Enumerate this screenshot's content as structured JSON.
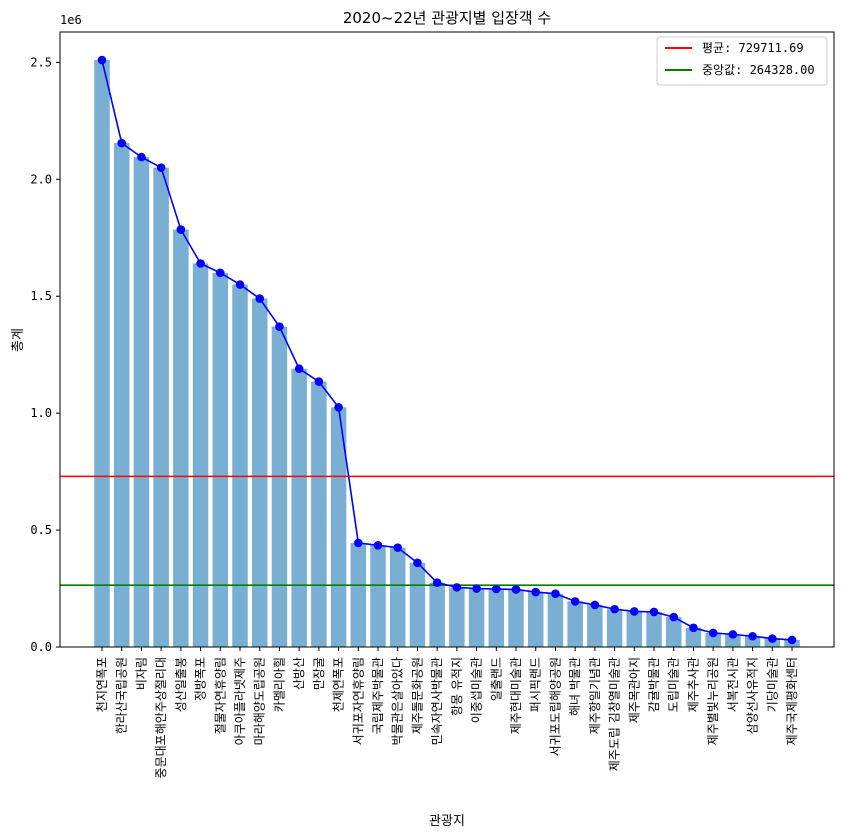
{
  "chart_data": {
    "type": "bar",
    "title": "2020~22년 관광지별 입장객 수",
    "xlabel": "관광지",
    "ylabel": "총계",
    "y_offset_label": "1e6",
    "ylim": [
      0,
      2630000
    ],
    "yticks": [
      0,
      500000,
      1000000,
      1500000,
      2000000,
      2500000
    ],
    "ytick_labels": [
      "0.0",
      "0.5",
      "1.0",
      "1.5",
      "2.0",
      "2.5"
    ],
    "grid": false,
    "legend_position": "top-right",
    "categories": [
      "천지연폭포",
      "한라산국립공원",
      "비자림",
      "중문대포해안주상절리대",
      "성산일출봉",
      "정방폭포",
      "절물자연휴양림",
      "아쿠아플라넷제주",
      "마라해양도립공원",
      "카멜리아힐",
      "산방산",
      "만장굴",
      "천제연폭포",
      "서귀포자연휴양림",
      "국립제주박물관",
      "박물관은살아있다",
      "제주돌문화공원",
      "민속자연사박물관",
      "항몽 유적지",
      "이중섭미술관",
      "일출랜드",
      "제주현대미술관",
      "퍼시픽랜드",
      "서귀포도립해양공원",
      "해녀 박물관",
      "제주항일기념관",
      "제주도립 김창열미술관",
      "제주목관아지",
      "감귤박물관",
      "도립미술관",
      "제주추사관",
      "제주별빛누리공원",
      "서복전시관",
      "삼양선사유적지",
      "기당미술관",
      "제주국제평화센터"
    ],
    "values": [
      2510000,
      2155000,
      2095000,
      2050000,
      1785000,
      1640000,
      1600000,
      1550000,
      1490000,
      1370000,
      1190000,
      1135000,
      1025000,
      445000,
      435000,
      425000,
      360000,
      275000,
      255000,
      250000,
      248000,
      246000,
      235000,
      228000,
      195000,
      180000,
      162000,
      152000,
      150000,
      128000,
      82000,
      60000,
      54000,
      46000,
      36000,
      30000
    ],
    "bar_color": "#7aafd4",
    "line_color": "#0000ff",
    "mean": {
      "label": "평균: 729711.69",
      "value": 729711.69,
      "color": "#ff0000"
    },
    "median": {
      "label": "중앙값: 264328.00",
      "value": 264328.0,
      "color": "#008000"
    }
  }
}
